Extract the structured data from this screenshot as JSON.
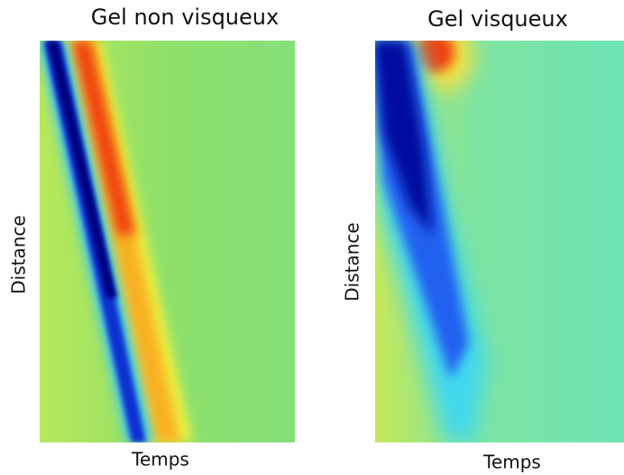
{
  "panels": [
    {
      "title": "Gel non visqueux",
      "y_label": "Distance",
      "x_label": "Temps"
    },
    {
      "title": "Gel visqueux",
      "y_label": "Distance",
      "x_label": "Temps"
    }
  ]
}
